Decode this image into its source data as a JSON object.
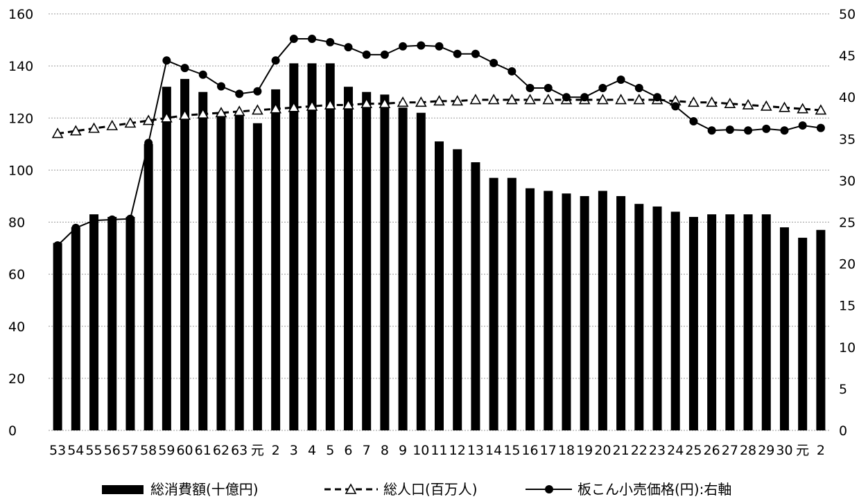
{
  "chart_data": {
    "type": "bar+line",
    "categories": [
      "53",
      "54",
      "55",
      "56",
      "57",
      "58",
      "59",
      "60",
      "61",
      "62",
      "63",
      "元",
      "2",
      "3",
      "4",
      "5",
      "6",
      "7",
      "8",
      "9",
      "10",
      "11",
      "12",
      "13",
      "14",
      "15",
      "16",
      "17",
      "18",
      "19",
      "20",
      "21",
      "22",
      "23",
      "24",
      "25",
      "26",
      "27",
      "28",
      "29",
      "30",
      "元",
      "2"
    ],
    "y_left": {
      "min": 0,
      "max": 160,
      "ticks": [
        "0",
        "20",
        "40",
        "60",
        "80",
        "100",
        "120",
        "140",
        "160"
      ]
    },
    "y_right": {
      "min": 0,
      "max": 50,
      "ticks": [
        "0",
        "5",
        "10",
        "15",
        "20",
        "25",
        "30",
        "35",
        "40",
        "45",
        "50"
      ]
    },
    "series": [
      {
        "name": "総消費額(十億円)",
        "kind": "bar",
        "axis": "left",
        "values": [
          72,
          78,
          83,
          82,
          82,
          110,
          132,
          135,
          130,
          122,
          121,
          118,
          131,
          141,
          141,
          141,
          132,
          130,
          129,
          124,
          122,
          111,
          108,
          103,
          97,
          97,
          93,
          92,
          91,
          90,
          92,
          90,
          87,
          86,
          84,
          82,
          83,
          83,
          83,
          83,
          78,
          74,
          77
        ]
      },
      {
        "name": "総人口(百万人)",
        "kind": "line",
        "axis": "left",
        "marker": "triangle",
        "dashed": true,
        "values": [
          114,
          115,
          116,
          117,
          118,
          119,
          120,
          121,
          121.5,
          122,
          122.5,
          123,
          123.5,
          124,
          124.5,
          125,
          125,
          125.5,
          125.5,
          126,
          126,
          126.5,
          126.5,
          127,
          127,
          127,
          127,
          127,
          127,
          127,
          127,
          127,
          127,
          127,
          126.5,
          126,
          126,
          125.5,
          125,
          124.5,
          124,
          123.5,
          123
        ]
      },
      {
        "name": "板こん小売価格(円):右軸",
        "kind": "line",
        "axis": "right",
        "marker": "circle",
        "dashed": false,
        "values": [
          22.2,
          24.3,
          25.2,
          25.3,
          25.4,
          34.5,
          44.4,
          43.5,
          42.7,
          41.3,
          40.4,
          40.7,
          44.4,
          47,
          47,
          46.6,
          46,
          45.1,
          45.1,
          46.1,
          46.2,
          46.1,
          45.2,
          45.2,
          44.1,
          43.1,
          41.1,
          41.1,
          40,
          40,
          41.1,
          42.1,
          41.1,
          40,
          38.9,
          37.1,
          36,
          36.1,
          36,
          36.2,
          36,
          36.6,
          36.3
        ]
      }
    ],
    "legend_position": "bottom",
    "grid": true
  }
}
